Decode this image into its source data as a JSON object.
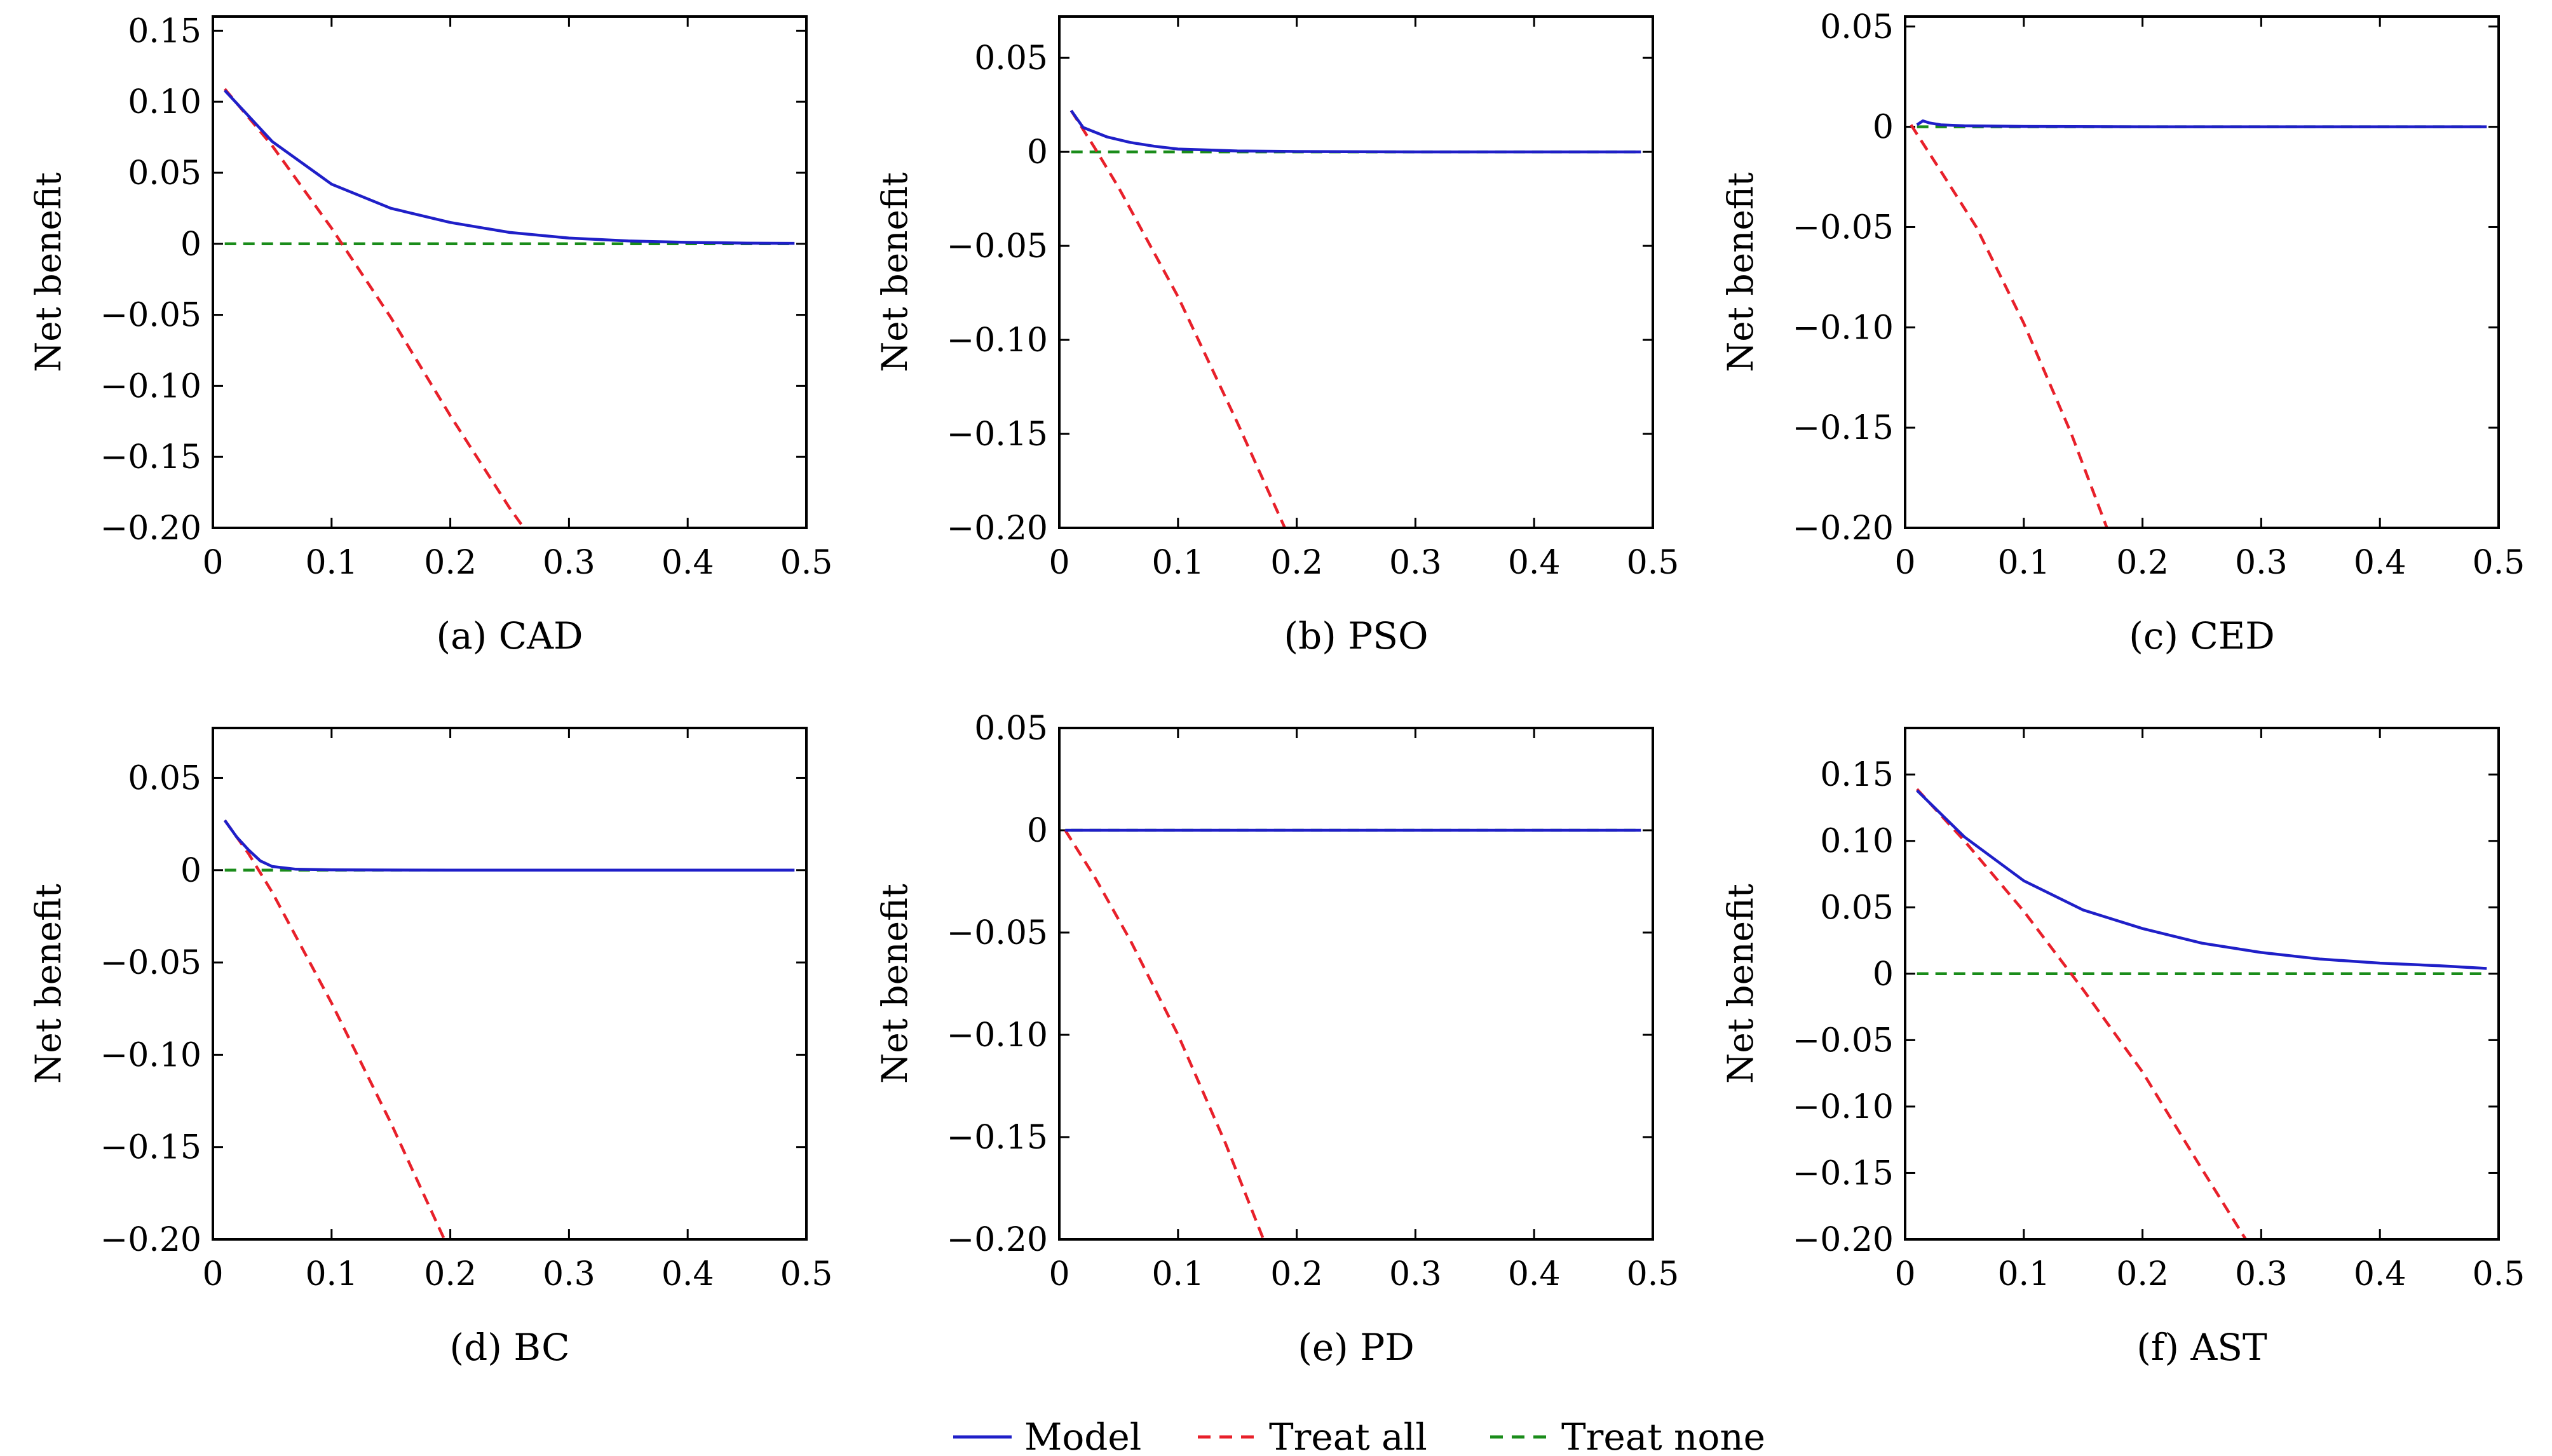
{
  "legend": [
    {
      "label": "Model",
      "color": "#1f1fc8",
      "dash": "solid"
    },
    {
      "label": "Treat all",
      "color": "#e8202a",
      "dash": "dashed"
    },
    {
      "label": "Treat none",
      "color": "#1a8c1a",
      "dash": "dashed"
    }
  ],
  "chart_data": [
    {
      "type": "line",
      "caption": "(a) CAD",
      "ylabel": "Net benefit",
      "xlim": [
        0,
        0.5
      ],
      "ylim": [
        -0.2,
        0.16
      ],
      "xticks": [
        0,
        0.1,
        0.2,
        0.3,
        0.4,
        0.5
      ],
      "xtick_labels": [
        "0",
        "0.1",
        "0.2",
        "0.3",
        "0.4",
        "0.5"
      ],
      "yticks": [
        0.15,
        0.1,
        0.05,
        0,
        -0.05,
        -0.1,
        -0.15,
        -0.2
      ],
      "ytick_labels": [
        "0.15",
        "0.10",
        "0.05",
        "0",
        "−0.05",
        "−0.10",
        "−0.15",
        "−0.20"
      ],
      "series": [
        {
          "name": "Model",
          "color": "#1f1fc8",
          "x": [
            0.01,
            0.05,
            0.1,
            0.15,
            0.2,
            0.25,
            0.3,
            0.35,
            0.4,
            0.45,
            0.49
          ],
          "y": [
            0.108,
            0.072,
            0.042,
            0.025,
            0.015,
            0.008,
            0.004,
            0.002,
            0.001,
            0.0005,
            0.0003
          ]
        },
        {
          "name": "Treat all",
          "color": "#e8202a",
          "x": [
            0.01,
            0.05,
            0.1,
            0.15,
            0.2,
            0.25,
            0.262
          ],
          "y": [
            0.109,
            0.069,
            0.011,
            -0.052,
            -0.121,
            -0.186,
            -0.2
          ]
        },
        {
          "name": "Treat none",
          "color": "#1a8c1a",
          "x": [
            0.01,
            0.49
          ],
          "y": [
            0,
            0
          ]
        }
      ]
    },
    {
      "type": "line",
      "caption": "(b) PSO",
      "ylabel": "Net benefit",
      "xlim": [
        0,
        0.5
      ],
      "ylim": [
        -0.2,
        0.072
      ],
      "xticks": [
        0,
        0.1,
        0.2,
        0.3,
        0.4,
        0.5
      ],
      "xtick_labels": [
        "0",
        "0.1",
        "0.2",
        "0.3",
        "0.4",
        "0.5"
      ],
      "yticks": [
        0.05,
        0,
        -0.05,
        -0.1,
        -0.15,
        -0.2
      ],
      "ytick_labels": [
        "0.05",
        "0",
        "−0.05",
        "−0.10",
        "−0.15",
        "−0.20"
      ],
      "series": [
        {
          "name": "Model",
          "color": "#1f1fc8",
          "x": [
            0.01,
            0.02,
            0.04,
            0.06,
            0.08,
            0.1,
            0.15,
            0.2,
            0.3,
            0.4,
            0.49
          ],
          "y": [
            0.022,
            0.013,
            0.008,
            0.005,
            0.003,
            0.0015,
            0.0005,
            0.0002,
            0,
            0,
            0
          ]
        },
        {
          "name": "Treat all",
          "color": "#e8202a",
          "x": [
            0.01,
            0.03,
            0.05,
            0.1,
            0.15,
            0.19
          ],
          "y": [
            0.022,
            0.002,
            -0.019,
            -0.077,
            -0.144,
            -0.2
          ]
        },
        {
          "name": "Treat none",
          "color": "#1a8c1a",
          "x": [
            0.01,
            0.49
          ],
          "y": [
            0,
            0
          ]
        }
      ]
    },
    {
      "type": "line",
      "caption": "(c) CED",
      "ylabel": "Net benefit",
      "xlim": [
        0,
        0.5
      ],
      "ylim": [
        -0.2,
        0.055
      ],
      "xticks": [
        0,
        0.1,
        0.2,
        0.3,
        0.4,
        0.5
      ],
      "xtick_labels": [
        "0",
        "0.1",
        "0.2",
        "0.3",
        "0.4",
        "0.5"
      ],
      "yticks": [
        0.05,
        0,
        -0.05,
        -0.1,
        -0.15,
        -0.2
      ],
      "ytick_labels": [
        "0.05",
        "0",
        "−0.05",
        "−0.10",
        "−0.15",
        "−0.20"
      ],
      "series": [
        {
          "name": "Model",
          "color": "#1f1fc8",
          "x": [
            0.01,
            0.015,
            0.02,
            0.03,
            0.05,
            0.1,
            0.2,
            0.3,
            0.4,
            0.49
          ],
          "y": [
            0.001,
            0.003,
            0.002,
            0.001,
            0.0005,
            0.0002,
            0,
            0,
            0,
            0
          ]
        },
        {
          "name": "Treat all",
          "color": "#e8202a",
          "x": [
            0.005,
            0.03,
            0.06,
            0.1,
            0.14,
            0.17
          ],
          "y": [
            0.001,
            -0.022,
            -0.05,
            -0.098,
            -0.153,
            -0.2
          ]
        },
        {
          "name": "Treat none",
          "color": "#1a8c1a",
          "x": [
            0.01,
            0.49
          ],
          "y": [
            0,
            0
          ]
        }
      ]
    },
    {
      "type": "line",
      "caption": "(d) BC",
      "ylabel": "Net benefit",
      "xlim": [
        0,
        0.5
      ],
      "ylim": [
        -0.2,
        0.077
      ],
      "xticks": [
        0,
        0.1,
        0.2,
        0.3,
        0.4,
        0.5
      ],
      "xtick_labels": [
        "0",
        "0.1",
        "0.2",
        "0.3",
        "0.4",
        "0.5"
      ],
      "yticks": [
        0.05,
        0,
        -0.05,
        -0.1,
        -0.15,
        -0.2
      ],
      "ytick_labels": [
        "0.05",
        "0",
        "−0.05",
        "−0.10",
        "−0.15",
        "−0.20"
      ],
      "series": [
        {
          "name": "Model",
          "color": "#1f1fc8",
          "x": [
            0.01,
            0.02,
            0.03,
            0.04,
            0.05,
            0.07,
            0.1,
            0.2,
            0.3,
            0.4,
            0.49
          ],
          "y": [
            0.027,
            0.018,
            0.011,
            0.005,
            0.002,
            0.0005,
            0.0002,
            0,
            0,
            0,
            0
          ]
        },
        {
          "name": "Treat all",
          "color": "#e8202a",
          "x": [
            0.01,
            0.03,
            0.05,
            0.1,
            0.15,
            0.195
          ],
          "y": [
            0.027,
            0.009,
            -0.012,
            -0.072,
            -0.137,
            -0.2
          ]
        },
        {
          "name": "Treat none",
          "color": "#1a8c1a",
          "x": [
            0.01,
            0.49
          ],
          "y": [
            0,
            0
          ]
        }
      ]
    },
    {
      "type": "line",
      "caption": "(e) PD",
      "ylabel": "Net benefit",
      "xlim": [
        0,
        0.5
      ],
      "ylim": [
        -0.2,
        0.05
      ],
      "xticks": [
        0,
        0.1,
        0.2,
        0.3,
        0.4,
        0.5
      ],
      "xtick_labels": [
        "0",
        "0.1",
        "0.2",
        "0.3",
        "0.4",
        "0.5"
      ],
      "yticks": [
        0.05,
        0,
        -0.05,
        -0.1,
        -0.15,
        -0.2
      ],
      "ytick_labels": [
        "0.05",
        "0",
        "−0.05",
        "−0.10",
        "−0.15",
        "−0.20"
      ],
      "series": [
        {
          "name": "Model",
          "color": "#1f1fc8",
          "x": [
            0.005,
            0.1,
            0.2,
            0.3,
            0.4,
            0.49
          ],
          "y": [
            0,
            0,
            0,
            0,
            0,
            0
          ]
        },
        {
          "name": "Treat all",
          "color": "#e8202a",
          "x": [
            0.005,
            0.03,
            0.06,
            0.1,
            0.14,
            0.172
          ],
          "y": [
            0,
            -0.023,
            -0.054,
            -0.1,
            -0.153,
            -0.2
          ]
        },
        {
          "name": "Treat none",
          "color": "#1a8c1a",
          "x": [
            0.01,
            0.49
          ],
          "y": [
            0,
            0
          ]
        }
      ]
    },
    {
      "type": "line",
      "caption": "(f) AST",
      "ylabel": "Net benefit",
      "xlim": [
        0,
        0.5
      ],
      "ylim": [
        -0.2,
        0.185
      ],
      "xticks": [
        0,
        0.1,
        0.2,
        0.3,
        0.4,
        0.5
      ],
      "xtick_labels": [
        "0",
        "0.1",
        "0.2",
        "0.3",
        "0.4",
        "0.5"
      ],
      "yticks": [
        0.15,
        0.1,
        0.05,
        0,
        -0.05,
        -0.1,
        -0.15,
        -0.2
      ],
      "ytick_labels": [
        "0.15",
        "0.10",
        "0.05",
        "0",
        "−0.05",
        "−0.10",
        "−0.15",
        "−0.20"
      ],
      "series": [
        {
          "name": "Model",
          "color": "#1f1fc8",
          "x": [
            0.01,
            0.05,
            0.1,
            0.15,
            0.2,
            0.25,
            0.3,
            0.35,
            0.4,
            0.45,
            0.49
          ],
          "y": [
            0.138,
            0.103,
            0.07,
            0.048,
            0.034,
            0.023,
            0.016,
            0.011,
            0.008,
            0.006,
            0.004
          ]
        },
        {
          "name": "Treat all",
          "color": "#e8202a",
          "x": [
            0.01,
            0.05,
            0.1,
            0.15,
            0.2,
            0.25,
            0.287
          ],
          "y": [
            0.139,
            0.1,
            0.047,
            -0.012,
            -0.074,
            -0.147,
            -0.2
          ]
        },
        {
          "name": "Treat none",
          "color": "#1a8c1a",
          "x": [
            0.01,
            0.49
          ],
          "y": [
            0,
            0
          ]
        }
      ]
    }
  ]
}
